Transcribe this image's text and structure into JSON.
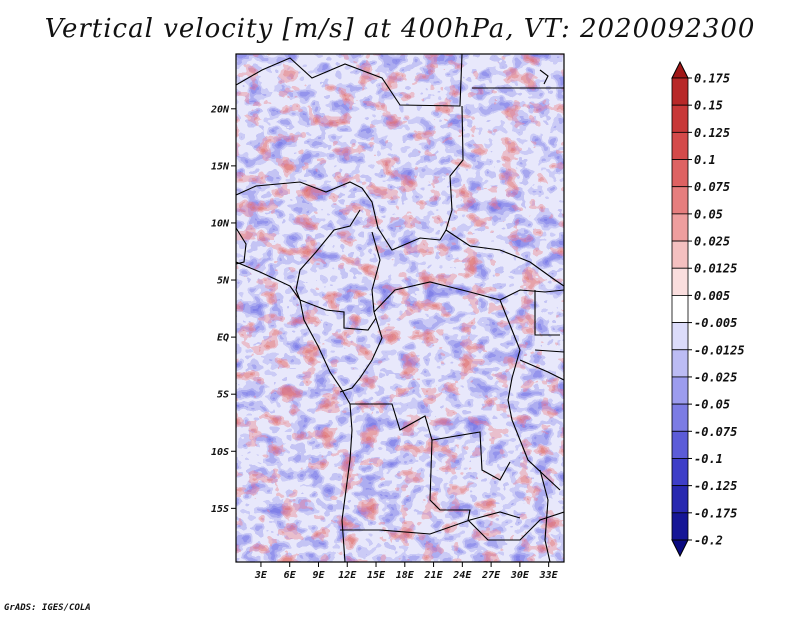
{
  "title": "Vertical velocity [m/s] at 400hPa, VT: 2020092300",
  "credit": "GrADS: IGES/COLA",
  "map": {
    "lat_labels": [
      "20N",
      "15N",
      "10N",
      "5N",
      "EQ",
      "5S",
      "10S",
      "15S"
    ],
    "lat_values": [
      20,
      15,
      10,
      5,
      0,
      -5,
      -10,
      -15
    ],
    "lon_labels": [
      "3E",
      "6E",
      "9E",
      "12E",
      "15E",
      "18E",
      "21E",
      "24E",
      "27E",
      "30E",
      "33E"
    ],
    "lon_values": [
      3,
      6,
      9,
      12,
      15,
      18,
      21,
      24,
      27,
      30,
      33
    ],
    "lon_range": [
      0.4,
      34.6
    ],
    "lat_range": [
      -19.7,
      24.8
    ]
  },
  "colorbar": {
    "labels": [
      "0.175",
      "0.15",
      "0.125",
      "0.1",
      "0.075",
      "0.05",
      "0.025",
      "0.0125",
      "0.005",
      "-0.005",
      "-0.0125",
      "-0.025",
      "-0.05",
      "-0.075",
      "-0.1",
      "-0.125",
      "-0.175",
      "-0.2"
    ],
    "colors": [
      "#a01818",
      "#b82828",
      "#c83838",
      "#d44a4a",
      "#de6262",
      "#e67e7e",
      "#ee9e9e",
      "#f4c0c0",
      "#fadede",
      "#ffffff",
      "#dcdcfa",
      "#bcbcf4",
      "#9c9cee",
      "#7c7ce4",
      "#5c5cd8",
      "#3e3ec8",
      "#2828b0",
      "#161696",
      "#0a0a80"
    ]
  },
  "palette": {
    "positive": "#e0726c",
    "negative": "#6a6ae4",
    "border": "#000000"
  }
}
